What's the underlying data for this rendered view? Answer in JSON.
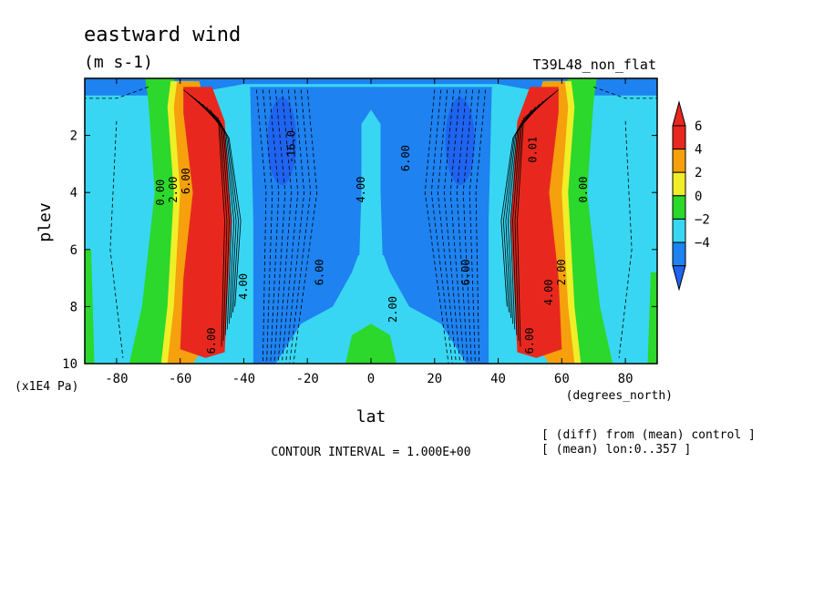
{
  "chart_data": {
    "type": "heatmap",
    "subtype": "filled-contour",
    "title": "eastward wind",
    "units": "(m s-1)",
    "experiment_label": "T39L48_non_flat",
    "xlabel": "lat",
    "x_units_label": "(degrees_north)",
    "ylabel": "plev",
    "y_units_label": "(x1E4 Pa)",
    "xlim": [
      -90,
      90
    ],
    "ylim": [
      10,
      0
    ],
    "x_ticks": [
      "-80",
      "-60",
      "-40",
      "-20",
      "0",
      "20",
      "40",
      "60",
      "80"
    ],
    "y_ticks": [
      "2",
      "4",
      "6",
      "8",
      "10"
    ],
    "contour_interval_text": "CONTOUR INTERVAL = 1.000E+00",
    "notes": [
      "[ (diff) from (mean) control ]",
      "[ (mean) lon:0..357 ]"
    ],
    "colorbar": {
      "ticks": [
        "6",
        "4",
        "2",
        "0",
        "−2",
        "−4"
      ],
      "levels": [
        {
          "from": 6,
          "to": 8,
          "color": "#e8281e"
        },
        {
          "from": 4,
          "to": 6,
          "color": "#f5a00c"
        },
        {
          "from": 2,
          "to": 4,
          "color": "#f0ee28"
        },
        {
          "from": 0,
          "to": 2,
          "color": "#2bd82b"
        },
        {
          "from": -2,
          "to": 0,
          "color": "#38d6f2"
        },
        {
          "from": -4,
          "to": -2,
          "color": "#1e82f0"
        }
      ],
      "over_color": "#e8281e",
      "under_color": "#1e64f0"
    },
    "contour_labels": [
      {
        "text": "0.00",
        "lat": -65,
        "plev": 4.0
      },
      {
        "text": "2.00",
        "lat": -61,
        "plev": 3.9
      },
      {
        "text": "6.00",
        "lat": -57,
        "plev": 3.6
      },
      {
        "text": "4.00",
        "lat": -39,
        "plev": 7.3
      },
      {
        "text": "6.00",
        "lat": -49,
        "plev": 9.2
      },
      {
        "text": "4.00",
        "lat": -2,
        "plev": 3.9
      },
      {
        "text": "6.00",
        "lat": -15,
        "plev": 6.8
      },
      {
        "text": "2.00",
        "lat": 8,
        "plev": 8.1
      },
      {
        "text": "6.00",
        "lat": 12,
        "plev": 2.8
      },
      {
        "text": "6.00",
        "lat": 31,
        "plev": 6.8
      },
      {
        "text": "2.00",
        "lat": 61,
        "plev": 6.8
      },
      {
        "text": "4.00",
        "lat": 57,
        "plev": 7.5
      },
      {
        "text": "6.00",
        "lat": 51,
        "plev": 9.2
      },
      {
        "text": "0.00",
        "lat": 68,
        "plev": 3.9
      },
      {
        "text": "0.01",
        "lat": 52,
        "plev": 2.5
      },
      {
        "text": "-16.0",
        "lat": -24,
        "plev": 2.4
      }
    ]
  }
}
